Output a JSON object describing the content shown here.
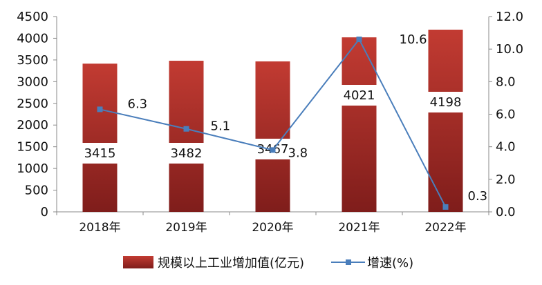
{
  "chart_data": {
    "type": "bar+line",
    "categories": [
      "2018年",
      "2019年",
      "2020年",
      "2021年",
      "2022年"
    ],
    "series": [
      {
        "name": "规模以上工业增加值(亿元)",
        "type": "bar",
        "axis": "left",
        "values": [
          3415,
          3482,
          3467,
          4021,
          4198
        ],
        "labels": [
          "3415",
          "3482",
          "3467",
          "4021",
          "4198"
        ],
        "color": "#b02a2a"
      },
      {
        "name": "增速(%)",
        "type": "line",
        "axis": "right",
        "values": [
          6.3,
          5.1,
          3.8,
          10.6,
          0.3
        ],
        "labels": [
          "6.3",
          "5.1",
          "3.8",
          "10.6",
          "0.3"
        ],
        "color": "#4a7ebb"
      }
    ],
    "y_left": {
      "min": 0,
      "max": 4500,
      "step": 500,
      "ticks": [
        "0",
        "500",
        "1000",
        "1500",
        "2000",
        "2500",
        "3000",
        "3500",
        "4000",
        "4500"
      ]
    },
    "y_right": {
      "min": 0,
      "max": 12,
      "step": 2,
      "ticks": [
        "0.0",
        "2.0",
        "4.0",
        "6.0",
        "8.0",
        "10.0",
        "12.0"
      ]
    },
    "legend_position": "bottom-center",
    "grid": false
  }
}
